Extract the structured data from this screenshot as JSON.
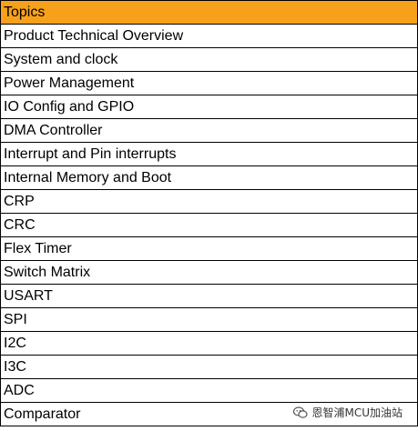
{
  "table": {
    "header": "Topics",
    "rows": [
      "Product Technical Overview",
      "System and clock",
      "Power Management",
      "IO Config and GPIO",
      "DMA Controller",
      "Interrupt and Pin interrupts",
      "Internal Memory and Boot",
      "CRP",
      "CRC",
      "Flex Timer",
      "Switch Matrix",
      "USART",
      "SPI",
      "I2C",
      "I3C",
      "ADC",
      "Comparator"
    ]
  },
  "watermark": {
    "text": "恩智浦MCU加油站"
  },
  "colors": {
    "header_bg": "#f7a11a",
    "border": "#000000"
  }
}
